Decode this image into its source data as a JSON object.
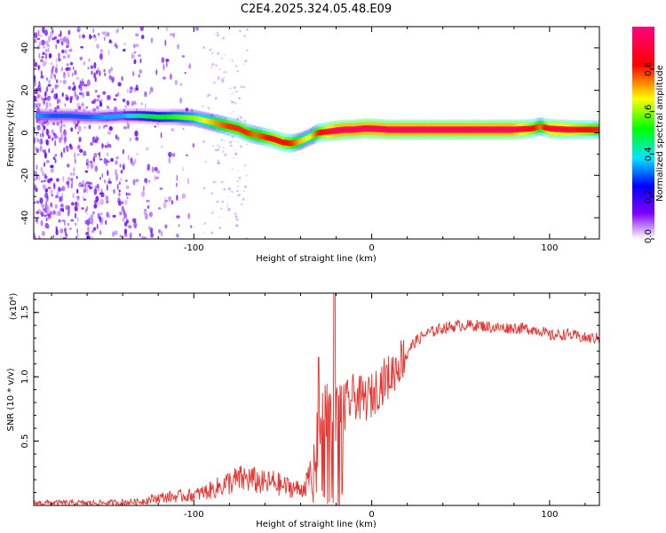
{
  "title": "C2E4.2025.324.05.48.E09",
  "spectrogram": {
    "xlabel": "Height of straight line (km)",
    "ylabel": "Frequency (Hz)",
    "xlim": [
      -190,
      128
    ],
    "ylim": [
      -50,
      50
    ],
    "xticks": [
      -100,
      0,
      100
    ],
    "yticks": [
      -40,
      -20,
      0,
      20,
      40
    ],
    "colorbar": {
      "label": "Normalized spectral amplitude",
      "range": [
        0,
        1
      ],
      "ticks": [
        0.0,
        0.2,
        0.4,
        0.6,
        0.8
      ]
    }
  },
  "chart_data": [
    {
      "type": "heatmap",
      "title": "C2E4.2025.324.05.48.E09",
      "xlabel": "Height of straight line (km)",
      "ylabel": "Frequency (Hz)",
      "xlim": [
        -190,
        128
      ],
      "ylim": [
        -50,
        50
      ],
      "colorbar_label": "Normalized spectral amplitude",
      "ridge": {
        "x": [
          -188,
          -180,
          -170,
          -160,
          -150,
          -140,
          -130,
          -120,
          -110,
          -100,
          -95,
          -90,
          -85,
          -80,
          -75,
          -70,
          -65,
          -60,
          -55,
          -50,
          -45,
          -40,
          -35,
          -30,
          -25,
          -20,
          -15,
          -10,
          -5,
          0,
          10,
          20,
          40,
          60,
          80,
          90,
          95,
          100,
          110,
          128
        ],
        "freq": [
          8,
          8,
          8,
          7.5,
          7.5,
          8,
          8,
          7.5,
          7.5,
          7,
          6,
          5,
          4,
          3,
          2,
          0,
          -1,
          -2,
          -3,
          -4.5,
          -5,
          -4,
          -2,
          0,
          0.5,
          1,
          1.5,
          1.5,
          2,
          2,
          1.5,
          1.5,
          1.5,
          1.5,
          1.5,
          2,
          3,
          2,
          1.5,
          1.5
        ],
        "amplitude": [
          0.35,
          0.3,
          0.3,
          0.3,
          0.35,
          0.35,
          0.45,
          0.5,
          0.55,
          0.6,
          0.65,
          0.7,
          0.75,
          0.8,
          0.8,
          0.8,
          0.75,
          0.8,
          0.85,
          0.85,
          0.8,
          0.7,
          0.65,
          0.8,
          0.9,
          0.95,
          0.95,
          0.95,
          0.95,
          0.95,
          0.95,
          0.95,
          0.95,
          0.95,
          0.95,
          0.85,
          0.75,
          0.9,
          0.9,
          0.8
        ]
      }
    },
    {
      "type": "line",
      "xlabel": "Height of straight line (km)",
      "ylabel": "SNR (10 * v/v)",
      "y_multiplier": "(x10⁴)",
      "xlim": [
        -190,
        128
      ],
      "ylim": [
        0,
        1.65
      ],
      "xticks": [
        -100,
        0,
        100
      ],
      "yticks": [
        0.5,
        1.0,
        1.5
      ],
      "color": "#e8322e",
      "series": [
        {
          "name": "SNR",
          "x": [
            -190,
            -170,
            -150,
            -130,
            -120,
            -110,
            -100,
            -90,
            -80,
            -75,
            -70,
            -65,
            -60,
            -55,
            -50,
            -45,
            -40,
            -35,
            -30,
            -28,
            -26,
            -24,
            -22,
            -20,
            -18,
            -15,
            -10,
            -5,
            0,
            5,
            10,
            15,
            20,
            25,
            30,
            40,
            50,
            60,
            70,
            80,
            90,
            95,
            100,
            110,
            120,
            128
          ],
          "y": [
            0.02,
            0.02,
            0.02,
            0.03,
            0.06,
            0.07,
            0.08,
            0.12,
            0.18,
            0.2,
            0.21,
            0.19,
            0.17,
            0.18,
            0.15,
            0.14,
            0.12,
            0.2,
            0.5,
            0.75,
            0.65,
            0.9,
            0.55,
            0.8,
            0.72,
            0.78,
            0.85,
            0.82,
            0.85,
            0.95,
            1.0,
            1.1,
            1.2,
            1.28,
            1.33,
            1.38,
            1.4,
            1.4,
            1.38,
            1.38,
            1.37,
            1.36,
            1.32,
            1.33,
            1.3,
            1.3
          ]
        }
      ]
    }
  ],
  "snr": {
    "xlabel": "Height of straight line (km)",
    "ylabel": "SNR (10 * v/v)",
    "multiplier": "(x10⁴)",
    "xticks": [
      -100,
      0,
      100
    ],
    "yticks": [
      0.5,
      1.0,
      1.5
    ],
    "ytick_labels": [
      "0.5",
      "1.0",
      "1.5"
    ]
  },
  "colors": {
    "snr_line": "#e8322e",
    "frame": "#000000",
    "background": "#ffffff"
  }
}
